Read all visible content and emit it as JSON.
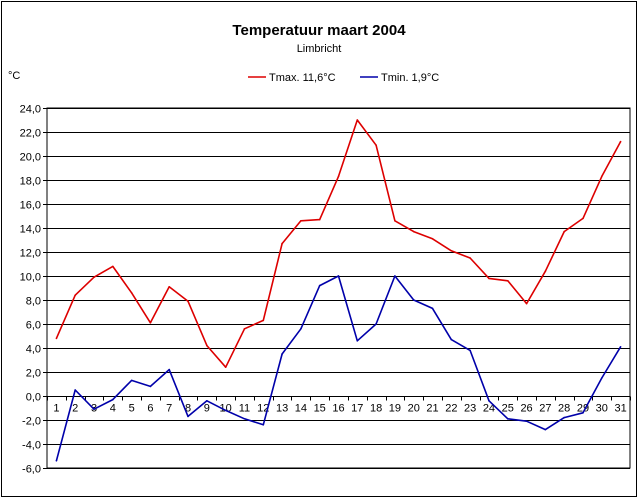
{
  "chart_data": {
    "type": "line",
    "title": "Temperatuur maart 2004",
    "subtitle": "Limbricht",
    "ylabel": "°C",
    "ylim": [
      -6,
      24
    ],
    "ytick_step": 2,
    "ytick_labels": [
      "24,0",
      "22,0",
      "20,0",
      "18,0",
      "16,0",
      "14,0",
      "12,0",
      "10,0",
      "8,0",
      "6,0",
      "4,0",
      "2,0",
      "0,0",
      "-2,0",
      "-4,0",
      "-6,0"
    ],
    "categories": [
      "1",
      "2",
      "3",
      "4",
      "5",
      "6",
      "7",
      "8",
      "9",
      "10",
      "11",
      "12",
      "13",
      "14",
      "15",
      "16",
      "17",
      "18",
      "19",
      "20",
      "21",
      "22",
      "23",
      "24",
      "25",
      "26",
      "27",
      "28",
      "29",
      "30",
      "31"
    ],
    "grid": "horizontal",
    "legend_position": "top",
    "series": [
      {
        "name": "Tmax. 11,6°C",
        "color": "#dd0000",
        "values": [
          4.8,
          8.4,
          9.9,
          10.8,
          8.6,
          6.1,
          9.1,
          7.9,
          4.2,
          2.4,
          5.6,
          6.3,
          12.7,
          14.6,
          14.7,
          18.3,
          23.0,
          20.9,
          14.6,
          13.7,
          13.1,
          12.1,
          11.5,
          9.8,
          9.6,
          7.7,
          10.4,
          13.7,
          14.8,
          18.3,
          21.2
        ]
      },
      {
        "name": "Tmin. 1,9°C",
        "color": "#0000aa",
        "values": [
          -5.4,
          0.5,
          -1.1,
          -0.3,
          1.3,
          0.8,
          2.2,
          -1.7,
          -0.4,
          -1.2,
          -1.9,
          -2.4,
          3.5,
          5.6,
          9.2,
          10.0,
          4.6,
          6.0,
          10.0,
          8.0,
          7.3,
          4.7,
          3.8,
          -0.4,
          -1.9,
          -2.1,
          -2.8,
          -1.8,
          -1.4,
          1.5,
          4.1
        ]
      }
    ]
  }
}
